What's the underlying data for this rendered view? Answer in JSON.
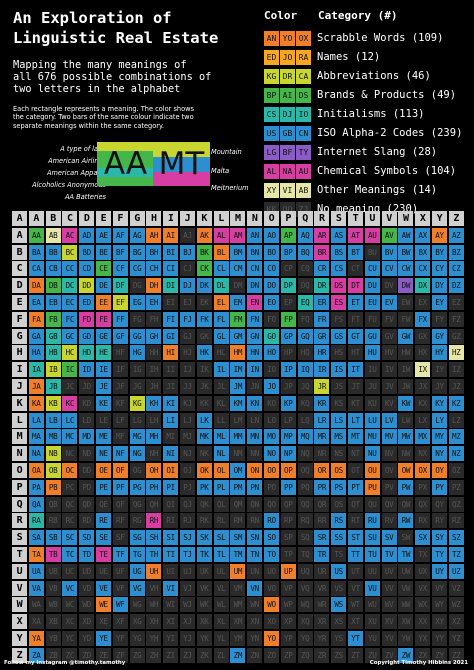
{
  "title": "An Exploration of\nLinguistic Real Estate",
  "subtitle": "Mapping the many meanings of\nall 676 possible combinations of\ntwo letters in the alphabet",
  "description": "Each rectangle represents a meaning. The color shows\nthe category. Two bars of the same colour indicate two\nseparate meanings within the same category.",
  "examples": {
    "aa": {
      "code": "AA",
      "meanings": [
        "A type of lava",
        "American Airlines",
        "American Apparel",
        "Alcoholics Anonymous",
        "AA Batteries"
      ]
    },
    "mt": {
      "code": "MT",
      "meanings": [
        "Mountain",
        "Malta",
        "Meitnerium"
      ]
    }
  },
  "legend": {
    "header_color": "Color",
    "header_category": "Category (#)",
    "items": [
      {
        "key": "scrabble",
        "label": "Scrabble Words (109)",
        "color": "#f07f2c",
        "samples": [
          "AN",
          "YO",
          "OX"
        ]
      },
      {
        "key": "names",
        "label": "Names (12)",
        "color": "#f5a623",
        "samples": [
          "ED",
          "JO",
          "RA"
        ]
      },
      {
        "key": "abbrev",
        "label": "Abbreviations (46)",
        "color": "#c8d62f",
        "samples": [
          "KG",
          "DR",
          "CA"
        ]
      },
      {
        "key": "brands",
        "label": "Brands & Products (49)",
        "color": "#45b649",
        "samples": [
          "BP",
          "AI",
          "DS"
        ]
      },
      {
        "key": "initialisms",
        "label": "Initialisms (113)",
        "color": "#2bb8a8",
        "samples": [
          "CS",
          "DJ",
          "IO"
        ]
      },
      {
        "key": "iso",
        "label": "ISO Alpha-2 Codes (239)",
        "color": "#2e8fd0",
        "samples": [
          "US",
          "GB",
          "CN"
        ]
      },
      {
        "key": "slang",
        "label": "Internet Slang (28)",
        "color": "#8b5cc6",
        "samples": [
          "LG",
          "BF",
          "TY"
        ]
      },
      {
        "key": "chem",
        "label": "Chemical Symbols (104)",
        "color": "#d63ea2",
        "samples": [
          "AL",
          "NA",
          "AU"
        ]
      },
      {
        "key": "other",
        "label": "Other Meanings (14)",
        "color": "#e6e6a8",
        "samples": [
          "XY",
          "VI",
          "AB"
        ]
      },
      {
        "key": "none",
        "label": "No meaning (230)",
        "color": "#2a2a2a",
        "samples": [
          "KK",
          "QQ",
          "ZJ"
        ]
      }
    ]
  },
  "chart_data": {
    "type": "heatmap",
    "row_letters": [
      "A",
      "B",
      "C",
      "D",
      "E",
      "F",
      "G",
      "H",
      "I",
      "J",
      "K",
      "L",
      "M",
      "N",
      "O",
      "P",
      "Q",
      "R",
      "S",
      "T",
      "U",
      "V",
      "W",
      "X",
      "Y",
      "Z"
    ],
    "col_letters": [
      "A",
      "B",
      "C",
      "D",
      "E",
      "F",
      "G",
      "H",
      "I",
      "J",
      "K",
      "L",
      "M",
      "N",
      "O",
      "P",
      "Q",
      "R",
      "S",
      "T",
      "U",
      "V",
      "W",
      "X",
      "Y",
      "Z"
    ],
    "corner_label": "A",
    "category_codes": {
      "s": "scrabble",
      "n": "names",
      "a": "abbrev",
      "b": "brands",
      "i": "initialisms",
      "c": "iso",
      "l": "slang",
      "h": "chem",
      "o": "other",
      "x": "none"
    },
    "rows": {
      "A": [
        "b",
        "o",
        "h",
        "c",
        "c",
        "c",
        "c",
        "s",
        "s",
        "x",
        "s",
        "h",
        "h",
        "c",
        "c",
        "b",
        "c",
        "h",
        "c",
        "h",
        "h",
        "b",
        "c",
        "c",
        "s",
        "c"
      ],
      "B": [
        "c",
        "c",
        "a",
        "c",
        "c",
        "c",
        "c",
        "c",
        "c",
        "c",
        "b",
        "s",
        "c",
        "c",
        "c",
        "c",
        "c",
        "h",
        "c",
        "c",
        "x",
        "c",
        "c",
        "c",
        "c",
        "c"
      ],
      "C": [
        "c",
        "c",
        "c",
        "c",
        "b",
        "c",
        "c",
        "c",
        "c",
        "x",
        "b",
        "c",
        "c",
        "c",
        "c",
        "x",
        "x",
        "c",
        "c",
        "x",
        "c",
        "c",
        "c",
        "c",
        "c",
        "c"
      ],
      "D": [
        "s",
        "b",
        "i",
        "a",
        "c",
        "i",
        "x",
        "s",
        "i",
        "c",
        "c",
        "i",
        "x",
        "c",
        "c",
        "i",
        "x",
        "i",
        "h",
        "h",
        "c",
        "x",
        "l",
        "i",
        "c",
        "c"
      ],
      "E": [
        "c",
        "c",
        "c",
        "c",
        "s",
        "a",
        "c",
        "c",
        "x",
        "x",
        "x",
        "s",
        "c",
        "h",
        "c",
        "x",
        "i",
        "c",
        "h",
        "c",
        "c",
        "c",
        "x",
        "x",
        "c",
        "x"
      ],
      "F": [
        "s",
        "b",
        "c",
        "h",
        "h",
        "c",
        "x",
        "x",
        "c",
        "c",
        "c",
        "c",
        "b",
        "c",
        "x",
        "b",
        "x",
        "c",
        "x",
        "x",
        "x",
        "x",
        "x",
        "c",
        "x",
        "x"
      ],
      "G": [
        "c",
        "i",
        "c",
        "c",
        "c",
        "c",
        "c",
        "c",
        "c",
        "x",
        "x",
        "c",
        "c",
        "c",
        "i",
        "c",
        "c",
        "c",
        "c",
        "c",
        "c",
        "x",
        "c",
        "x",
        "c",
        "x"
      ],
      "H": [
        "c",
        "i",
        "a",
        "i",
        "i",
        "x",
        "c",
        "x",
        "s",
        "x",
        "c",
        "x",
        "s",
        "c",
        "c",
        "x",
        "x",
        "c",
        "x",
        "x",
        "c",
        "x",
        "x",
        "x",
        "c",
        "o"
      ],
      "I": [
        "i",
        "a",
        "b",
        "c",
        "c",
        "x",
        "x",
        "x",
        "x",
        "x",
        "x",
        "c",
        "c",
        "c",
        "x",
        "c",
        "c",
        "c",
        "c",
        "c",
        "x",
        "x",
        "x",
        "o",
        "x",
        "x"
      ],
      "J": [
        "s",
        "i",
        "x",
        "x",
        "c",
        "x",
        "x",
        "x",
        "x",
        "x",
        "x",
        "x",
        "c",
        "x",
        "c",
        "x",
        "x",
        "a",
        "x",
        "x",
        "x",
        "x",
        "x",
        "x",
        "x",
        "x"
      ],
      "K": [
        "s",
        "a",
        "h",
        "x",
        "c",
        "x",
        "a",
        "c",
        "c",
        "x",
        "x",
        "x",
        "c",
        "c",
        "x",
        "c",
        "x",
        "c",
        "x",
        "x",
        "x",
        "x",
        "c",
        "x",
        "c",
        "c"
      ],
      "L": [
        "c",
        "c",
        "c",
        "x",
        "x",
        "x",
        "x",
        "x",
        "c",
        "x",
        "c",
        "x",
        "x",
        "x",
        "x",
        "x",
        "x",
        "c",
        "c",
        "c",
        "c",
        "c",
        "x",
        "x",
        "c",
        "x"
      ],
      "M": [
        "c",
        "c",
        "c",
        "c",
        "c",
        "x",
        "c",
        "c",
        "x",
        "x",
        "c",
        "c",
        "c",
        "c",
        "c",
        "c",
        "c",
        "c",
        "c",
        "c",
        "c",
        "c",
        "c",
        "c",
        "c",
        "c"
      ],
      "N": [
        "c",
        "a",
        "x",
        "x",
        "c",
        "c",
        "c",
        "x",
        "c",
        "x",
        "x",
        "c",
        "x",
        "x",
        "c",
        "c",
        "x",
        "x",
        "x",
        "x",
        "c",
        "x",
        "x",
        "x",
        "c",
        "c"
      ],
      "O": [
        "s",
        "a",
        "s",
        "x",
        "s",
        "s",
        "x",
        "s",
        "s",
        "x",
        "s",
        "s",
        "c",
        "s",
        "s",
        "s",
        "x",
        "s",
        "s",
        "x",
        "s",
        "x",
        "s",
        "s",
        "s",
        "x"
      ],
      "P": [
        "c",
        "s",
        "x",
        "x",
        "c",
        "c",
        "c",
        "c",
        "c",
        "x",
        "c",
        "c",
        "c",
        "c",
        "x",
        "c",
        "x",
        "c",
        "c",
        "c",
        "s",
        "x",
        "c",
        "x",
        "c",
        "x"
      ],
      "Q": [
        "c",
        "x",
        "x",
        "x",
        "x",
        "x",
        "x",
        "x",
        "x",
        "x",
        "x",
        "x",
        "x",
        "x",
        "x",
        "x",
        "x",
        "x",
        "x",
        "x",
        "x",
        "x",
        "x",
        "x",
        "x",
        "x"
      ],
      "R": [
        "i",
        "x",
        "x",
        "x",
        "c",
        "x",
        "x",
        "h",
        "x",
        "x",
        "x",
        "x",
        "x",
        "x",
        "c",
        "x",
        "x",
        "x",
        "c",
        "x",
        "c",
        "x",
        "c",
        "x",
        "x",
        "x"
      ],
      "S": [
        "c",
        "c",
        "c",
        "c",
        "c",
        "x",
        "c",
        "c",
        "c",
        "c",
        "c",
        "c",
        "c",
        "c",
        "c",
        "x",
        "x",
        "c",
        "c",
        "c",
        "c",
        "c",
        "x",
        "c",
        "c",
        "c"
      ],
      "T": [
        "s",
        "h",
        "c",
        "c",
        "h",
        "c",
        "c",
        "c",
        "c",
        "c",
        "c",
        "c",
        "c",
        "c",
        "c",
        "x",
        "x",
        "c",
        "x",
        "c",
        "c",
        "c",
        "c",
        "x",
        "c",
        "c"
      ],
      "U": [
        "c",
        "x",
        "x",
        "x",
        "x",
        "x",
        "c",
        "s",
        "x",
        "x",
        "x",
        "x",
        "s",
        "x",
        "x",
        "s",
        "x",
        "x",
        "c",
        "x",
        "x",
        "x",
        "x",
        "x",
        "c",
        "c"
      ],
      "V": [
        "c",
        "x",
        "c",
        "x",
        "c",
        "x",
        "c",
        "x",
        "c",
        "x",
        "x",
        "x",
        "x",
        "c",
        "x",
        "x",
        "x",
        "x",
        "x",
        "x",
        "c",
        "x",
        "x",
        "x",
        "x",
        "x"
      ],
      "W": [
        "x",
        "x",
        "x",
        "x",
        "s",
        "c",
        "x",
        "x",
        "x",
        "x",
        "x",
        "x",
        "x",
        "x",
        "s",
        "x",
        "x",
        "x",
        "c",
        "x",
        "x",
        "x",
        "x",
        "x",
        "x",
        "x"
      ],
      "X": [
        "x",
        "x",
        "x",
        "x",
        "x",
        "x",
        "x",
        "x",
        "x",
        "x",
        "x",
        "x",
        "x",
        "x",
        "x",
        "x",
        "x",
        "x",
        "x",
        "x",
        "x",
        "x",
        "x",
        "x",
        "x",
        "x"
      ],
      "Y": [
        "s",
        "x",
        "x",
        "x",
        "c",
        "x",
        "x",
        "x",
        "x",
        "x",
        "x",
        "x",
        "x",
        "x",
        "s",
        "x",
        "x",
        "x",
        "x",
        "c",
        "x",
        "x",
        "x",
        "x",
        "x",
        "x"
      ],
      "Z": [
        "c",
        "x",
        "x",
        "x",
        "x",
        "x",
        "x",
        "x",
        "x",
        "x",
        "x",
        "x",
        "c",
        "x",
        "x",
        "x",
        "x",
        "x",
        "x",
        "x",
        "x",
        "x",
        "c",
        "x",
        "x",
        "x"
      ]
    }
  },
  "footer_left": "Follow my instagram @timothy.tamothy",
  "footer_right": "Copyright Timothy Hibbins 2021"
}
